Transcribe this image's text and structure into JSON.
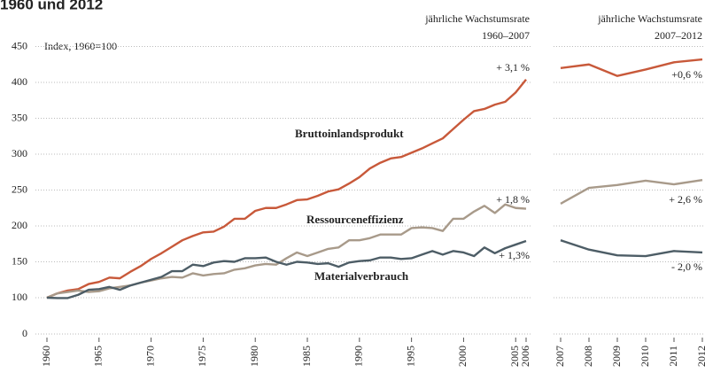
{
  "chart_data": [
    {
      "type": "line",
      "title": "1960 und 2012",
      "y_axis_label": "Index, 1960=100",
      "header": [
        "jährliche Wachstumsrate",
        "1960–2007"
      ],
      "x": [
        1960,
        1961,
        1962,
        1963,
        1964,
        1965,
        1966,
        1967,
        1968,
        1969,
        1970,
        1971,
        1972,
        1973,
        1974,
        1975,
        1976,
        1977,
        1978,
        1979,
        1980,
        1981,
        1982,
        1983,
        1984,
        1985,
        1986,
        1987,
        1988,
        1989,
        1990,
        1991,
        1992,
        1993,
        1994,
        1995,
        1996,
        1997,
        1998,
        1999,
        2000,
        2001,
        2002,
        2003,
        2004,
        2005,
        2006
      ],
      "xlim": [
        1960,
        2006
      ],
      "xticks": [
        1960,
        1965,
        1970,
        1975,
        1980,
        1985,
        1990,
        1995,
        2000,
        2005,
        2006
      ],
      "ylim": [
        0,
        450
      ],
      "yticks": [
        0,
        100,
        150,
        200,
        250,
        300,
        350,
        400,
        450
      ],
      "grid": true,
      "series": [
        {
          "name": "Bruttoinlandsprodukt",
          "color": "#c8593a",
          "rate": "+ 3,1 %",
          "values": [
            100,
            106,
            110,
            112,
            119,
            122,
            128,
            127,
            136,
            144,
            154,
            162,
            171,
            180,
            186,
            191,
            192,
            199,
            210,
            210,
            221,
            225,
            225,
            230,
            236,
            237,
            242,
            248,
            251,
            259,
            268,
            280,
            288,
            294,
            296,
            302,
            308,
            315,
            322,
            335,
            348,
            360,
            363,
            369,
            373,
            386,
            404
          ]
        },
        {
          "name": "Ressourceneffizienz",
          "color": "#a89a8a",
          "rate": "+ 1,8 %",
          "values": [
            100,
            106,
            108,
            110,
            108,
            109,
            113,
            115,
            117,
            121,
            124,
            127,
            129,
            128,
            134,
            131,
            133,
            134,
            139,
            141,
            145,
            147,
            146,
            155,
            163,
            158,
            163,
            168,
            170,
            180,
            180,
            183,
            188,
            188,
            188,
            197,
            198,
            197,
            193,
            210,
            210,
            220,
            228,
            218,
            230,
            225,
            224
          ]
        },
        {
          "name": "Materialverbrauch",
          "color": "#4d5d66",
          "rate": "+ 1,3%",
          "values": [
            100,
            99,
            99,
            104,
            111,
            112,
            115,
            111,
            117,
            121,
            125,
            129,
            137,
            137,
            146,
            144,
            149,
            151,
            150,
            155,
            155,
            156,
            150,
            146,
            150,
            149,
            147,
            148,
            143,
            149,
            151,
            152,
            156,
            156,
            154,
            155,
            160,
            165,
            160,
            165,
            163,
            158,
            170,
            162,
            169,
            174,
            179
          ]
        }
      ]
    },
    {
      "type": "line",
      "header": [
        "jährliche Wachstumsrate",
        "2007–2012"
      ],
      "x": [
        2007,
        2008,
        2009,
        2010,
        2011,
        2012
      ],
      "xlim": [
        2007,
        2012
      ],
      "xticks": [
        2007,
        2008,
        2009,
        2010,
        2011,
        2012
      ],
      "ylim": [
        0,
        450
      ],
      "grid": true,
      "series": [
        {
          "color": "#c8593a",
          "rate": "+0,6 %",
          "values": [
            420,
            425,
            409,
            418,
            428,
            432
          ]
        },
        {
          "color": "#a89a8a",
          "rate": "+ 2,6 %",
          "values": [
            231,
            253,
            257,
            263,
            258,
            264
          ]
        },
        {
          "color": "#4d5d66",
          "rate": "- 2,0 %",
          "values": [
            180,
            167,
            159,
            158,
            165,
            163
          ]
        }
      ]
    }
  ]
}
